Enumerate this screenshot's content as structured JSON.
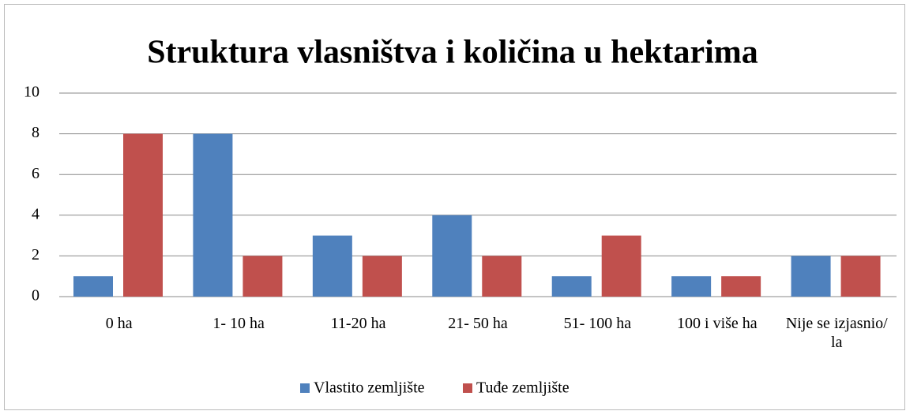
{
  "chart_data": {
    "type": "bar",
    "title": "Struktura vlasništva i količina u hektarima",
    "categories": [
      "0 ha",
      "1- 10 ha",
      "11-20 ha",
      "21- 50 ha",
      "51- 100 ha",
      "100 i više ha",
      "Nije se izjasnio/ la"
    ],
    "series": [
      {
        "name": "Vlastito zemljište",
        "color": "#4f81bd",
        "values": [
          1,
          8,
          3,
          4,
          1,
          1,
          2
        ]
      },
      {
        "name": "Tuđe zemljište",
        "color": "#c0504d",
        "values": [
          8,
          2,
          2,
          2,
          3,
          1,
          2
        ]
      }
    ],
    "ylim": [
      0,
      10
    ],
    "yticks": [
      0,
      2,
      4,
      6,
      8,
      10
    ],
    "grid": true,
    "legend": "bottom"
  }
}
